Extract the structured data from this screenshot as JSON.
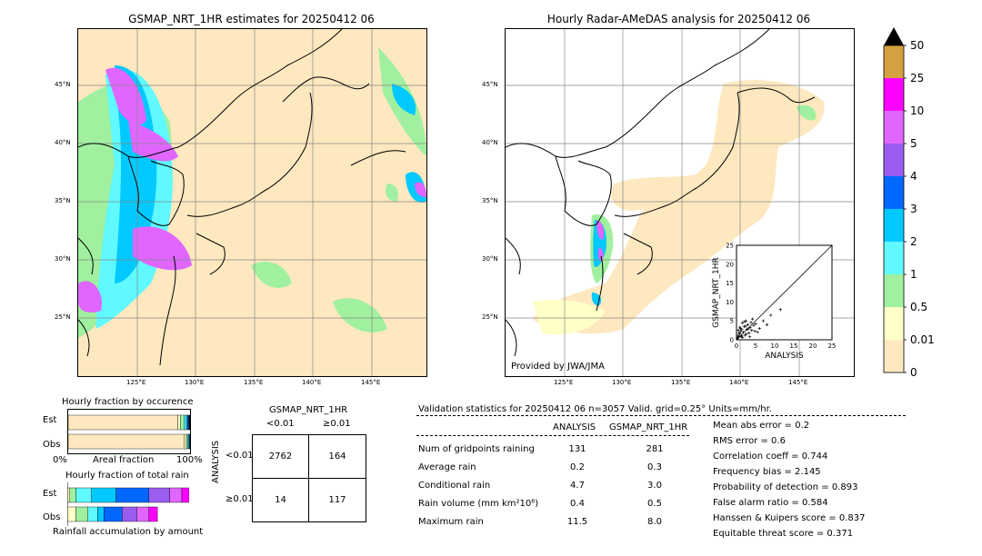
{
  "colors": {
    "land_rain": "#fde8bf",
    "bg": "#ffffff",
    "scale": [
      "#fde8bf",
      "#ffffc8",
      "#a0f0a0",
      "#5ff9ff",
      "#00c9ff",
      "#0068ff",
      "#9b5cf0",
      "#e066ff",
      "#ff00ff",
      "#d4a040"
    ]
  },
  "map_left": {
    "title": "GSMAP_NRT_1HR estimates for 20250412 06",
    "lat_labels": [
      "45°N",
      "40°N",
      "35°N",
      "30°N",
      "25°N"
    ],
    "lon_labels": [
      "125°E",
      "130°E",
      "135°E",
      "140°E",
      "145°E"
    ]
  },
  "map_right": {
    "title": "Hourly Radar-AMeDAS analysis for 20250412 06",
    "lat_labels": [
      "45°N",
      "40°N",
      "35°N",
      "30°N",
      "25°N"
    ],
    "lon_labels": [
      "125°E",
      "130°E",
      "135°E",
      "140°E",
      "145°E"
    ],
    "credit": "Provided by JWA/JMA"
  },
  "colorbar": {
    "labels": [
      "50",
      "25",
      "10",
      "5",
      "4",
      "3",
      "2",
      "1",
      "0.5",
      "0.01",
      "0"
    ]
  },
  "fraction_occurrence": {
    "title": "Hourly fraction by occurence",
    "rows": [
      "Est",
      "Obs"
    ],
    "axis_left": "0%",
    "axis_mid": "Areal fraction",
    "axis_right": "100%"
  },
  "fraction_rain": {
    "title": "Hourly fraction of total rain",
    "rows": [
      "Est",
      "Obs"
    ],
    "footer": "Rainfall accumulation by amount"
  },
  "contingency": {
    "header": "GSMAP_NRT_1HR",
    "col_labels": [
      "<0.01",
      "≥0.01"
    ],
    "side_label": "ANALYSIS",
    "row_labels": [
      "<0.01",
      "≥0.01"
    ],
    "cells": [
      [
        "2762",
        "164"
      ],
      [
        "14",
        "117"
      ]
    ]
  },
  "validation": {
    "header": "Validation statistics for 20250412 06  n=3057 Valid. grid=0.25° Units=mm/hr.",
    "col_headers": [
      "ANALYSIS",
      "GSMAP_NRT_1HR"
    ],
    "rows": [
      {
        "label": "Num of gridpoints raining",
        "a": "131",
        "g": "281"
      },
      {
        "label": "Average rain",
        "a": "0.2",
        "g": "0.3"
      },
      {
        "label": "Conditional rain",
        "a": "4.7",
        "g": "3.0"
      },
      {
        "label": "Rain volume (mm km²10⁶)",
        "a": "0.4",
        "g": "0.5"
      },
      {
        "label": "Maximum rain",
        "a": "11.5",
        "g": "8.0"
      }
    ],
    "scores": [
      "Mean abs error =    0.2",
      "RMS error =    0.6",
      "Correlation coeff =  0.744",
      "Frequency bias =  2.145",
      "Probability of detection =  0.893",
      "False alarm ratio =  0.584",
      "Hanssen & Kuipers score =  0.837",
      "Equitable threat score =  0.371"
    ]
  },
  "chart_data": [
    {
      "type": "scatter",
      "xlabel": "ANALYSIS",
      "ylabel": "GSMAP_NRT_1HR",
      "xlim": [
        0,
        25
      ],
      "ylim": [
        0,
        25
      ],
      "ticks": [
        0,
        5,
        10,
        15,
        20,
        25
      ],
      "x": [
        0.3,
        0.5,
        0.8,
        1.0,
        1.2,
        1.5,
        1.8,
        2.0,
        2.2,
        2.5,
        2.8,
        3.0,
        3.3,
        3.6,
        4.0,
        4.2,
        4.5,
        5.0,
        5.5,
        6.0,
        0.4,
        0.7,
        1.1,
        1.6,
        2.1,
        2.6,
        3.1,
        3.8,
        0.2,
        0.9,
        1.4,
        7.0,
        8.0,
        9.0,
        11.5,
        0.6,
        1.3,
        2.4,
        3.5,
        4.8
      ],
      "y": [
        1.0,
        2.5,
        1.5,
        3.0,
        0.8,
        4.5,
        2.0,
        3.5,
        1.2,
        5.0,
        2.8,
        4.0,
        1.8,
        3.2,
        2.5,
        5.5,
        3.8,
        4.2,
        2.0,
        3.0,
        0.5,
        1.8,
        2.2,
        0.6,
        4.8,
        1.5,
        2.9,
        4.6,
        0.3,
        3.3,
        2.7,
        5.0,
        4.0,
        6.5,
        8.0,
        0.9,
        1.1,
        3.6,
        0.8,
        2.3
      ]
    },
    {
      "type": "bar",
      "title": "Hourly fraction by occurence",
      "categories": [
        "Est",
        "Obs"
      ],
      "series": [
        {
          "values": [
            0.9,
            0.95
          ]
        },
        {
          "values": [
            0.02,
            0.02
          ]
        },
        {
          "values": [
            0.03,
            0.01
          ]
        },
        {
          "values": [
            0.02,
            0.01
          ]
        },
        {
          "values": [
            0.01,
            0.005
          ]
        },
        {
          "values": [
            0.01,
            0.005
          ]
        },
        {
          "values": [
            0.01,
            0.0
          ]
        }
      ]
    },
    {
      "type": "bar",
      "title": "Hourly fraction of total rain",
      "categories": [
        "Est",
        "Obs"
      ],
      "series": [
        {
          "values": [
            0.02,
            0.07
          ]
        },
        {
          "values": [
            0.05,
            0.1
          ]
        },
        {
          "values": [
            0.13,
            0.08
          ]
        },
        {
          "values": [
            0.2,
            0.05
          ]
        },
        {
          "values": [
            0.27,
            0.15
          ]
        },
        {
          "values": [
            0.17,
            0.12
          ]
        },
        {
          "values": [
            0.1,
            0.1
          ]
        },
        {
          "values": [
            0.06,
            0.07
          ]
        }
      ]
    }
  ]
}
